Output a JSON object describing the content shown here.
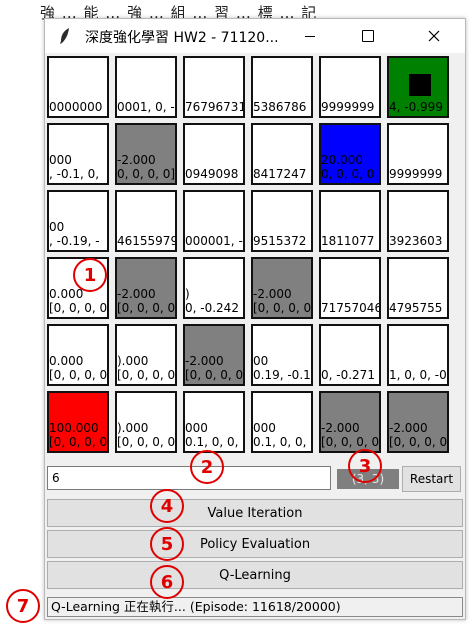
{
  "background_text": "強 … 能 … 強 … 組 … 習 … 標 … 記",
  "window": {
    "title": "深度強化學習 HW2 - 71120...",
    "icon": "feather-icon"
  },
  "grid": {
    "rows": [
      [
        {
          "color": "white",
          "l1": "",
          "l2": "0000000"
        },
        {
          "color": "white",
          "l1": "",
          "l2": "0001, 0, -"
        },
        {
          "color": "white",
          "l1": "",
          "l2": "76796731"
        },
        {
          "color": "white",
          "l1": "",
          "l2": "5386786"
        },
        {
          "color": "white",
          "l1": "",
          "l2": "9999999"
        },
        {
          "color": "green",
          "l1": "",
          "l2": "4, -0.999",
          "agent": true
        }
      ],
      [
        {
          "color": "white",
          "l1": "000",
          "l2": ", -0.1, 0,"
        },
        {
          "color": "gray",
          "l1": "-2.000",
          "l2": "0, 0, 0, 0]"
        },
        {
          "color": "white",
          "l1": "",
          "l2": "0949098"
        },
        {
          "color": "white",
          "l1": "",
          "l2": "8417247"
        },
        {
          "color": "blue",
          "l1": "20.000",
          "l2": "0, 0, 0, 0"
        },
        {
          "color": "white",
          "l1": "",
          "l2": "9999999"
        }
      ],
      [
        {
          "color": "white",
          "l1": "00",
          "l2": ", -0.19, -"
        },
        {
          "color": "white",
          "l1": "",
          "l2": "46155979"
        },
        {
          "color": "white",
          "l1": "",
          "l2": "000001, -"
        },
        {
          "color": "white",
          "l1": "",
          "l2": "9515372"
        },
        {
          "color": "white",
          "l1": "",
          "l2": "1811077"
        },
        {
          "color": "white",
          "l1": "",
          "l2": "3923603"
        }
      ],
      [
        {
          "color": "white",
          "l1": "0.000",
          "l2": "[0, 0, 0, 0]"
        },
        {
          "color": "gray",
          "l1": "-2.000",
          "l2": "[0, 0, 0, 0]"
        },
        {
          "color": "white",
          "l1": ")",
          "l2": "0, -0.242"
        },
        {
          "color": "gray",
          "l1": "-2.000",
          "l2": "[0, 0, 0, 0]"
        },
        {
          "color": "white",
          "l1": "",
          "l2": "71757046"
        },
        {
          "color": "white",
          "l1": "",
          "l2": "4795755"
        }
      ],
      [
        {
          "color": "white",
          "l1": "0.000",
          "l2": "[0, 0, 0, 0]"
        },
        {
          "color": "white",
          "l1": ").000",
          "l2": "[0, 0, 0, 0]"
        },
        {
          "color": "gray",
          "l1": "-2.000",
          "l2": "[0, 0, 0, 0]"
        },
        {
          "color": "white",
          "l1": "00",
          "l2": "0.19, -0.1"
        },
        {
          "color": "white",
          "l1": "",
          "l2": "0, -0.271"
        },
        {
          "color": "white",
          "l1": "",
          "l2": "1, 0, 0, -0"
        }
      ],
      [
        {
          "color": "red",
          "l1": "100.000",
          "l2": "[0, 0, 0, 0]"
        },
        {
          "color": "white",
          "l1": ").000",
          "l2": "[0, 0, 0, 0]"
        },
        {
          "color": "white",
          "l1": "000",
          "l2": "0.1, 0, 0,"
        },
        {
          "color": "white",
          "l1": "000",
          "l2": "0.1, 0, 0,"
        },
        {
          "color": "gray",
          "l1": "-2.000",
          "l2": "[0, 0, 0, 0]"
        },
        {
          "color": "gray",
          "l1": "-2.000",
          "l2": "[0, 0, 0, 0]"
        }
      ]
    ]
  },
  "controls": {
    "input_value": "6",
    "tag_text": "(3, 3)",
    "restart_label": "Restart"
  },
  "buttons": {
    "value_iteration": "Value Iteration",
    "policy_evaluation": "Policy Evaluation",
    "q_learning": "Q-Learning"
  },
  "status": {
    "text": "Q-Learning 正在執行... (Episode: 11618/20000)"
  },
  "markers": [
    "1",
    "2",
    "3",
    "4",
    "5",
    "6",
    "7"
  ],
  "colors": {
    "gray": "#808080",
    "blue": "#0000ff",
    "red": "#ff0000",
    "green": "#008000",
    "marker": "#e00000"
  }
}
